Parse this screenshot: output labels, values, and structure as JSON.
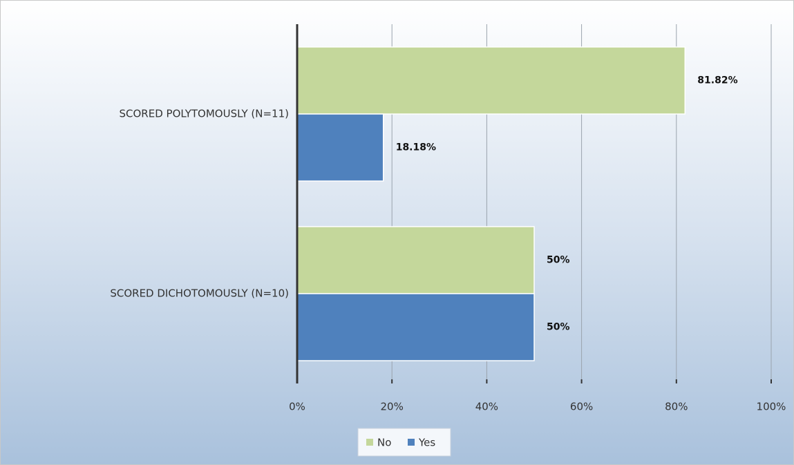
{
  "chart_data": {
    "type": "bar",
    "orientation": "horizontal",
    "categories": [
      "SCORED POLYTOMOUSLY (N=11)",
      "SCORED DICHOTOMOUSLY (N=10)"
    ],
    "series": [
      {
        "name": "No",
        "color": "#c4d79b",
        "values": [
          81.82,
          50
        ],
        "value_labels": [
          "81.82%",
          "50%"
        ]
      },
      {
        "name": "Yes",
        "color": "#4f81bd",
        "values": [
          18.18,
          50
        ],
        "value_labels": [
          "18.18%",
          "50%"
        ]
      }
    ],
    "xlim": [
      0,
      100
    ],
    "xticks": [
      {
        "value": 0,
        "label": "0%"
      },
      {
        "value": 20,
        "label": "20%"
      },
      {
        "value": 40,
        "label": "40%"
      },
      {
        "value": 60,
        "label": "60%"
      },
      {
        "value": 80,
        "label": "80%"
      },
      {
        "value": 100,
        "label": "100%"
      }
    ],
    "grid": true,
    "legend": "bottom"
  }
}
